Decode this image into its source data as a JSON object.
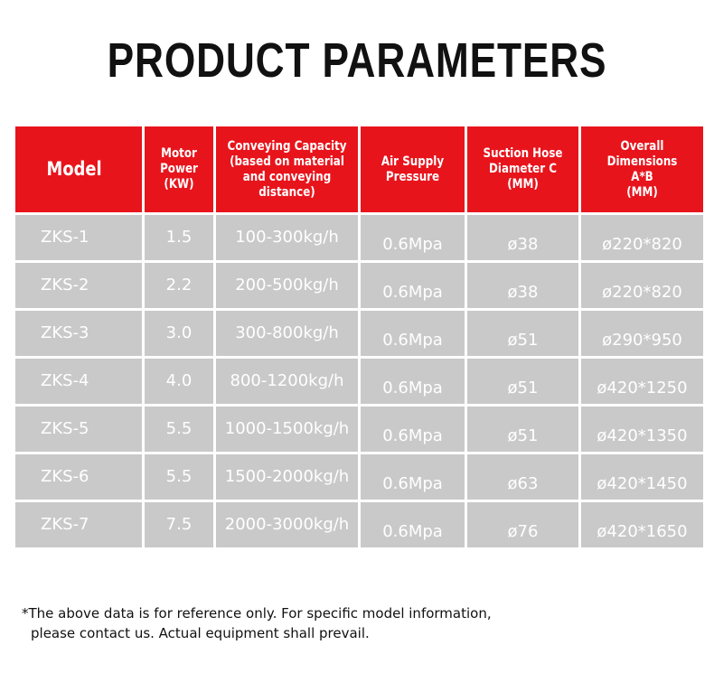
{
  "header": {
    "title": "PRODUCT PARAMETERS"
  },
  "table": {
    "headers": [
      [
        "Model"
      ],
      [
        "Motor",
        "Power",
        "(KW)"
      ],
      [
        "Conveying Capacity",
        "(based on material",
        "and conveying",
        "distance)"
      ],
      [
        "Air Supply",
        "Pressure"
      ],
      [
        "Suction Hose",
        "Diameter C",
        "(MM)"
      ],
      [
        "Overall Dimensions",
        "A*B",
        "(MM)"
      ]
    ],
    "rows": [
      [
        "ZKS-1",
        "1.5",
        "100-300kg/h",
        "0.6Mpa",
        "ø38",
        "ø220*820"
      ],
      [
        "ZKS-2",
        "2.2",
        "200-500kg/h",
        "0.6Mpa",
        "ø38",
        "ø220*820"
      ],
      [
        "ZKS-3",
        "3.0",
        "300-800kg/h",
        "0.6Mpa",
        "ø51",
        "ø290*950"
      ],
      [
        "ZKS-4",
        "4.0",
        "800-1200kg/h",
        "0.6Mpa",
        "ø51",
        "ø420*1250"
      ],
      [
        "ZKS-5",
        "5.5",
        "1000-1500kg/h",
        "0.6Mpa",
        "ø51",
        "ø420*1350"
      ],
      [
        "ZKS-6",
        "5.5",
        "1500-2000kg/h",
        "0.6Mpa",
        "ø63",
        "ø420*1450"
      ],
      [
        "ZKS-7",
        "7.5",
        "2000-3000kg/h",
        "0.6Mpa",
        "ø76",
        "ø420*1650"
      ]
    ]
  },
  "footnote": [
    "*The above data is for reference only. For specific model information,",
    "please contact us. Actual equipment shall prevail."
  ]
}
